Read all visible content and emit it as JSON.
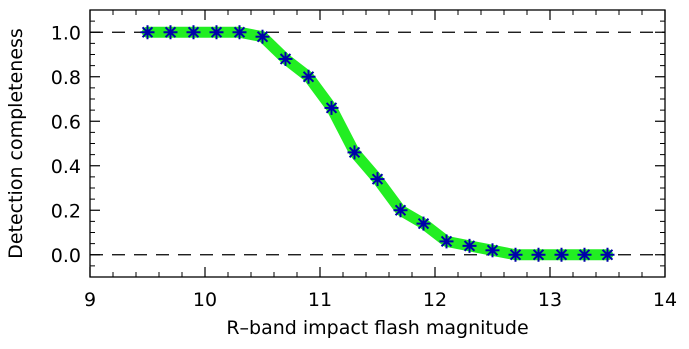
{
  "chart_data": {
    "type": "line",
    "title": "",
    "xlabel": "R–band impact flash magnitude",
    "ylabel": "Detection completeness",
    "xlim": [
      9,
      14
    ],
    "ylim": [
      -0.1,
      1.1
    ],
    "xticks": [
      9,
      10,
      11,
      12,
      13,
      14
    ],
    "xtick_labels": [
      "9",
      "10",
      "11",
      "12",
      "13",
      "14"
    ],
    "yticks": [
      0.0,
      0.2,
      0.4,
      0.6,
      0.8,
      1.0
    ],
    "ytick_labels": [
      "0.0",
      "0.2",
      "0.4",
      "0.6",
      "0.8",
      "1.0"
    ],
    "reference_lines_y": [
      0.0,
      1.0
    ],
    "grid": false,
    "series": [
      {
        "x": [
          9.5,
          9.7,
          9.9,
          10.1,
          10.3,
          10.5,
          10.7,
          10.9,
          11.1,
          11.3,
          11.5,
          11.7,
          11.9,
          12.1,
          12.3,
          12.5,
          12.7,
          12.9,
          13.1,
          13.3,
          13.5
        ],
        "y": [
          1.0,
          1.0,
          1.0,
          1.0,
          1.0,
          0.98,
          0.88,
          0.8,
          0.66,
          0.46,
          0.34,
          0.2,
          0.14,
          0.06,
          0.04,
          0.02,
          0.0,
          0.0,
          0.0,
          0.0,
          0.0
        ]
      }
    ],
    "colors": {
      "curve": "#22ee22",
      "marker": "#0000aa",
      "reference_line": "#000000",
      "axes": "#000000"
    },
    "marker": "asterisk"
  }
}
